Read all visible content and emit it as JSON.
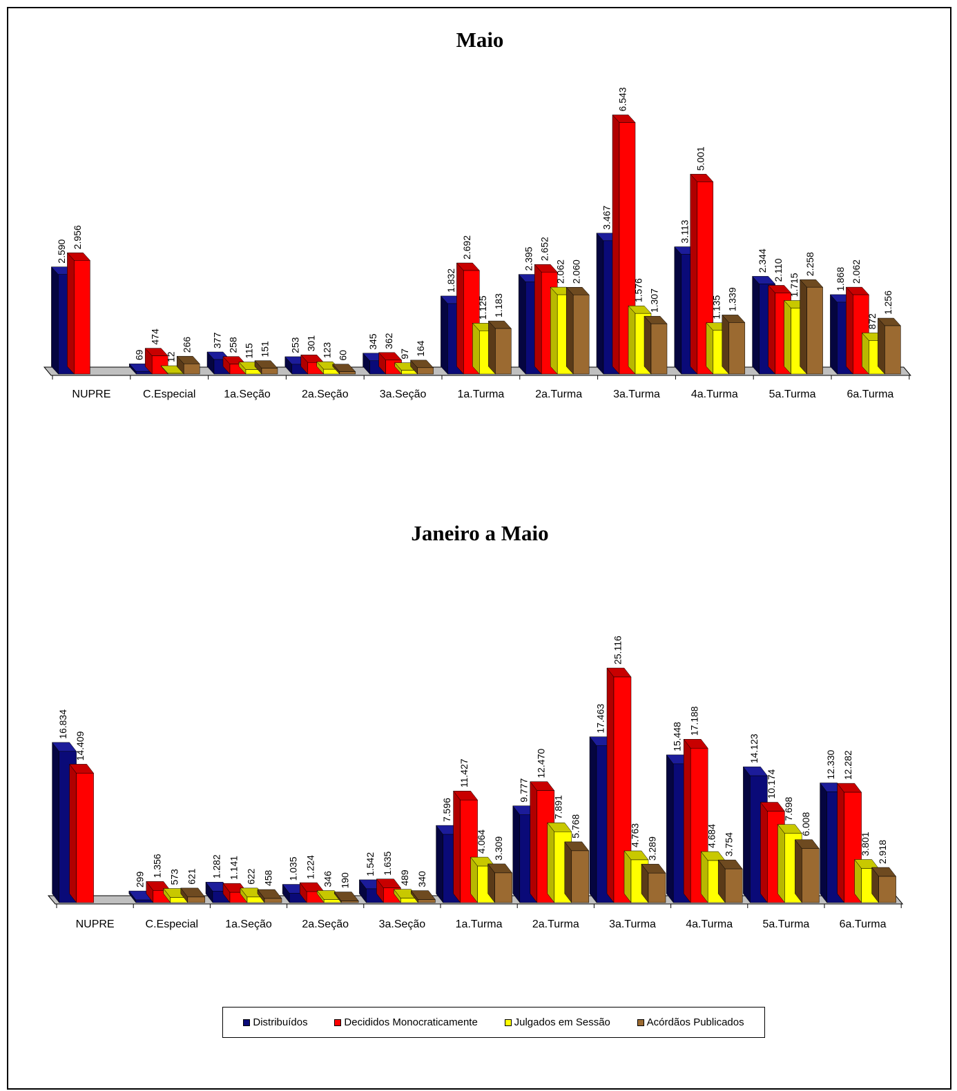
{
  "legend": {
    "items": [
      {
        "label": "Distribuídos",
        "color": "#0a0a78"
      },
      {
        "label": "Decididos Monocraticamente",
        "color": "#ff0000"
      },
      {
        "label": "Julgados em Sessão",
        "color": "#ffff00"
      },
      {
        "label": "Acórdãos Publicados",
        "color": "#9b6a31"
      }
    ]
  },
  "chart_data": [
    {
      "type": "bar",
      "title": "Maio",
      "categories": [
        "NUPRE",
        "C.Especial",
        "1a.Seção",
        "2a.Seção",
        "3a.Seção",
        "1a.Turma",
        "2a.Turma",
        "3a.Turma",
        "4a.Turma",
        "5a.Turma",
        "6a.Turma"
      ],
      "series": [
        {
          "name": "Distribuídos",
          "values": [
            2590,
            69,
            377,
            253,
            345,
            1832,
            2395,
            3467,
            3113,
            2344,
            1868
          ],
          "labels": [
            "2.590",
            "69",
            "377",
            "253",
            "345",
            "1.832",
            "2.395",
            "3.467",
            "3.113",
            "2.344",
            "1.868"
          ]
        },
        {
          "name": "Decididos Monocraticamente",
          "values": [
            2956,
            474,
            258,
            301,
            362,
            2692,
            2652,
            6543,
            5001,
            2110,
            2062
          ],
          "labels": [
            "2.956",
            "474",
            "258",
            "301",
            "362",
            "2.692",
            "2.652",
            "6.543",
            "5.001",
            "2.110",
            "2.062"
          ]
        },
        {
          "name": "Julgados em Sessão",
          "values": [
            null,
            12,
            115,
            123,
            97,
            1125,
            2062,
            1576,
            1135,
            1715,
            872
          ],
          "labels": [
            null,
            "12",
            "115",
            "123",
            "97",
            "1.125",
            "2.062",
            "1.576",
            "1.135",
            "1.715",
            "872"
          ]
        },
        {
          "name": "Acórdãos Publicados",
          "values": [
            null,
            266,
            151,
            60,
            164,
            1183,
            2060,
            1307,
            1339,
            2258,
            1256
          ],
          "labels": [
            null,
            "266",
            "151",
            "60",
            "164",
            "1.183",
            "2.060",
            "1.307",
            "1.339",
            "2.258",
            "1.256"
          ]
        }
      ],
      "ylim": [
        0,
        7000
      ],
      "grid": false,
      "legend_position": "bottom"
    },
    {
      "type": "bar",
      "title": "Janeiro a Maio",
      "categories": [
        "NUPRE",
        "C.Especial",
        "1a.Seção",
        "2a.Seção",
        "3a.Seção",
        "1a.Turma",
        "2a.Turma",
        "3a.Turma",
        "4a.Turma",
        "5a.Turma",
        "6a.Turma"
      ],
      "series": [
        {
          "name": "Distribuídos",
          "values": [
            16834,
            299,
            1282,
            1035,
            1542,
            7596,
            9777,
            17463,
            15448,
            14123,
            12330
          ],
          "labels": [
            "16.834",
            "299",
            "1.282",
            "1.035",
            "1.542",
            "7.596",
            "9.777",
            "17.463",
            "15.448",
            "14.123",
            "12.330"
          ]
        },
        {
          "name": "Decididos Monocraticamente",
          "values": [
            14409,
            1356,
            1141,
            1224,
            1635,
            11427,
            12470,
            25116,
            17188,
            10174,
            12282
          ],
          "labels": [
            "14.409",
            "1.356",
            "1.141",
            "1.224",
            "1.635",
            "11.427",
            "12.470",
            "25.116",
            "17.188",
            "10.174",
            "12.282"
          ]
        },
        {
          "name": "Julgados em Sessão",
          "values": [
            null,
            573,
            622,
            346,
            489,
            4064,
            7891,
            4763,
            4684,
            7698,
            3801
          ],
          "labels": [
            null,
            "573",
            "622",
            "346",
            "489",
            "4.064",
            "7.891",
            "4.763",
            "4.684",
            "7.698",
            "3.801"
          ]
        },
        {
          "name": "Acórdãos Publicados",
          "values": [
            null,
            621,
            458,
            190,
            340,
            3309,
            5768,
            3289,
            3754,
            6008,
            2918
          ],
          "labels": [
            null,
            "621",
            "458",
            "190",
            "340",
            "3.309",
            "5.768",
            "3.289",
            "3.754",
            "6.008",
            "2.918"
          ]
        }
      ],
      "ylim": [
        0,
        26500
      ],
      "grid": false,
      "legend_position": "bottom"
    }
  ]
}
